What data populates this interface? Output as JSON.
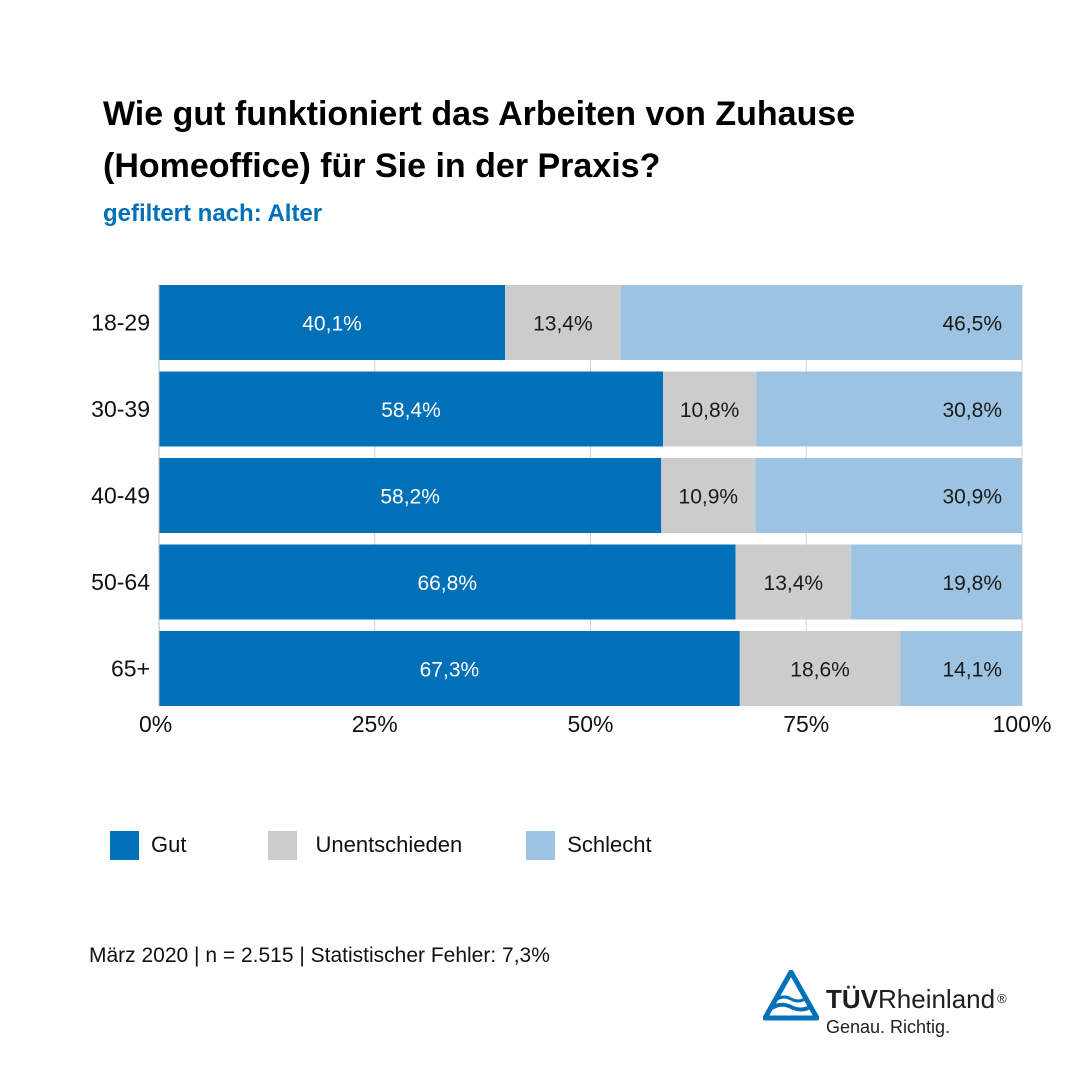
{
  "title": "Wie gut funktioniert das Arbeiten von Zuhause (Homeoffice) für Sie in der Praxis?",
  "subtitle": "gefiltert nach: Alter",
  "chart_data": {
    "type": "bar",
    "orientation": "horizontal",
    "stacked": true,
    "categories": [
      "18-29",
      "30-39",
      "40-49",
      "50-64",
      "65+"
    ],
    "series": [
      {
        "name": "Gut",
        "color": "#0070b8",
        "values": [
          40.1,
          58.4,
          58.2,
          66.8,
          67.3
        ],
        "labels": [
          "40,1%",
          "58,4%",
          "58,2%",
          "66,8%",
          "67,3%"
        ]
      },
      {
        "name": "Unentschieden",
        "color": "#cccccc",
        "values": [
          13.4,
          10.8,
          10.9,
          13.4,
          18.6
        ],
        "labels": [
          "13,4%",
          "10,8%",
          "10,9%",
          "13,4%",
          "18,6%"
        ]
      },
      {
        "name": "Schlecht",
        "color": "#9cc4e2",
        "values": [
          46.5,
          30.8,
          30.9,
          19.8,
          14.1
        ],
        "labels": [
          "46,5%",
          "30,8%",
          "30,9%",
          "19,8%",
          "14,1%"
        ]
      }
    ],
    "xlim": [
      0,
      100
    ],
    "xticks": [
      0,
      25,
      50,
      75,
      100
    ],
    "xtick_labels": [
      "0%",
      "25%",
      "50%",
      "75%",
      "100%"
    ],
    "grid": true,
    "legend": "bottom"
  },
  "footnote": "März 2020 | n = 2.515 | Statistischer Fehler: 7,3%",
  "logo": {
    "brand_bold": "TÜV",
    "brand_regular": "Rheinland",
    "registered": "®",
    "tagline": "Genau. Richtig.",
    "icon": "tuev-triangle-icon",
    "color": "#0070b8"
  }
}
